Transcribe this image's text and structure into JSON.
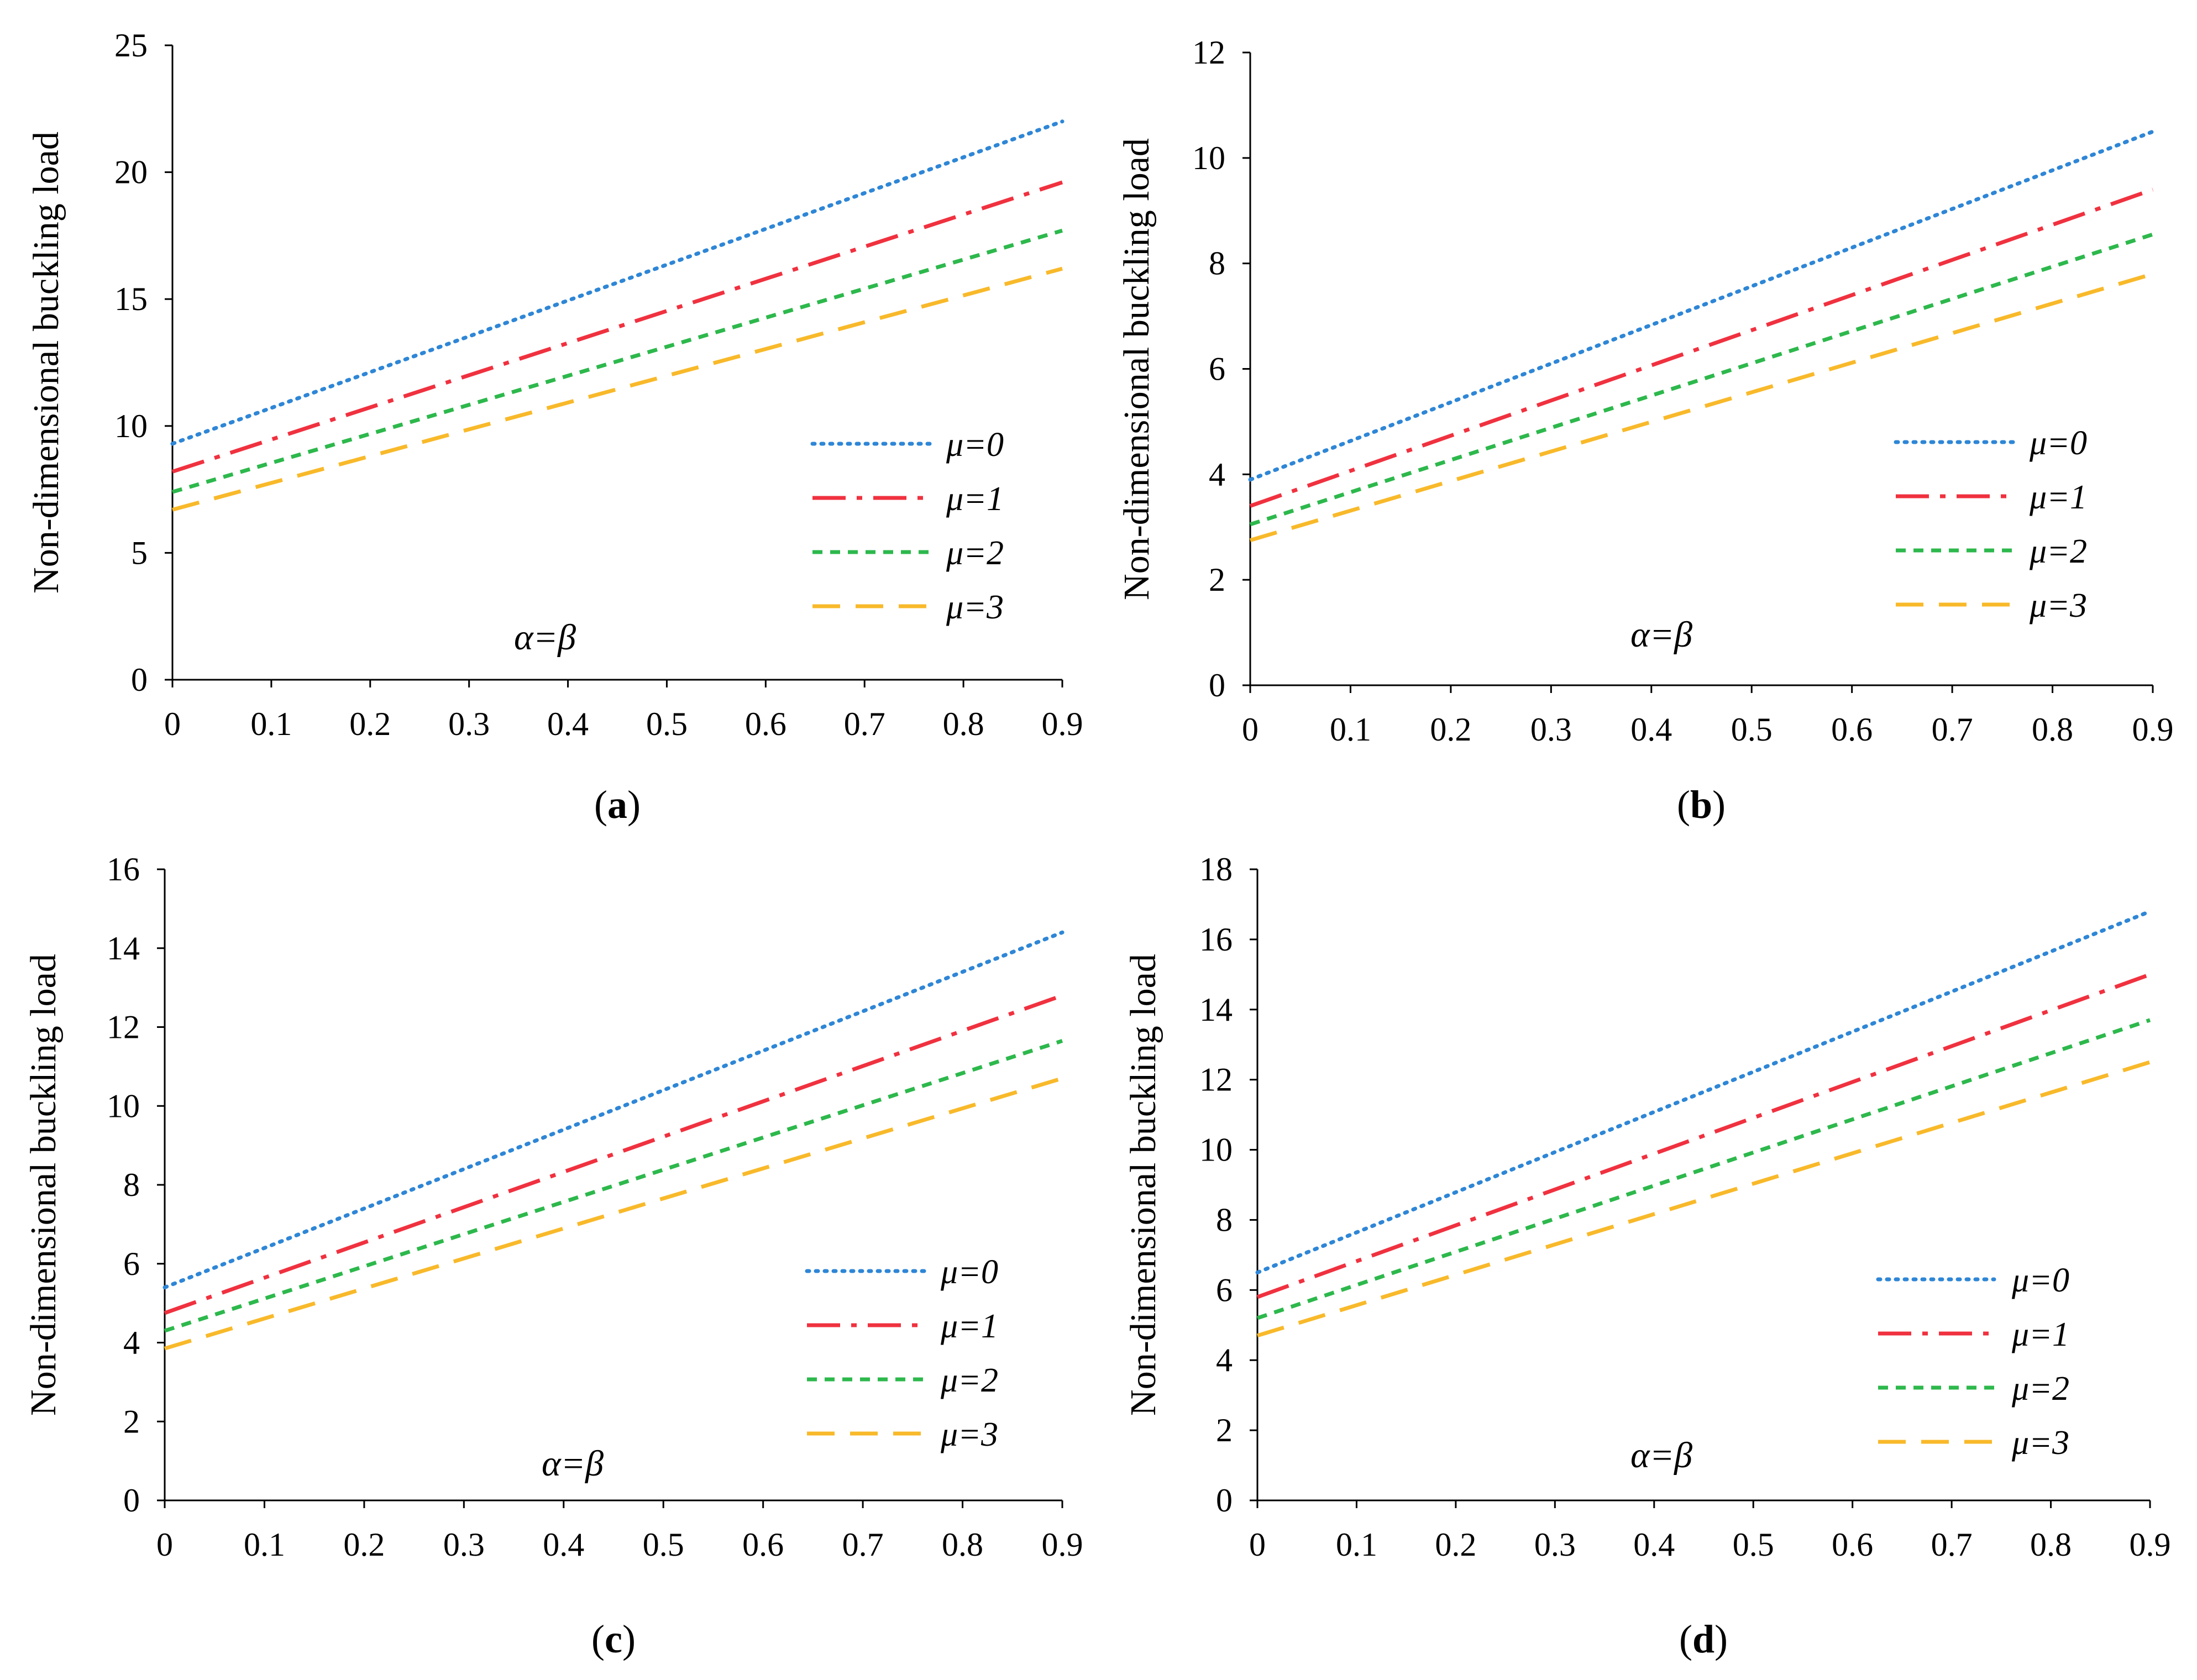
{
  "series_styles": [
    {
      "name": "μ=0",
      "color": "#2E86D6",
      "dash": "4 12",
      "cap": "round"
    },
    {
      "name": "μ=1",
      "color": "#F0313F",
      "dash": "60 20 10 20",
      "cap": "butt"
    },
    {
      "name": "μ=2",
      "color": "#2DB84C",
      "dash": "18 14",
      "cap": "butt"
    },
    {
      "name": "μ=3",
      "color": "#F8B92A",
      "dash": "50 28",
      "cap": "butt"
    }
  ],
  "chart_data": [
    {
      "type": "line",
      "caption_letter": "a",
      "annotation": "α=β",
      "ylabel": "Non-dimensional buckling load",
      "xlabel": "",
      "x": [
        0,
        0.9
      ],
      "xticks": [
        "0",
        "0.1",
        "0.2",
        "0.3",
        "0.4",
        "0.5",
        "0.6",
        "0.7",
        "0.8",
        "0.9"
      ],
      "yticks": [
        "0",
        "5",
        "10",
        "15",
        "20",
        "25"
      ],
      "xlim": [
        0,
        0.9
      ],
      "ylim": [
        0,
        25
      ],
      "series": [
        {
          "name": "μ=0",
          "values": [
            9.3,
            22.0
          ]
        },
        {
          "name": "μ=1",
          "values": [
            8.2,
            19.6
          ]
        },
        {
          "name": "μ=2",
          "values": [
            7.4,
            17.7
          ]
        },
        {
          "name": "μ=3",
          "values": [
            6.7,
            16.2
          ]
        }
      ]
    },
    {
      "type": "line",
      "caption_letter": "b",
      "annotation": "α=β",
      "ylabel": "Non-dimensional buckling load",
      "xlabel": "",
      "x": [
        0,
        0.9
      ],
      "xticks": [
        "0",
        "0.1",
        "0.2",
        "0.3",
        "0.4",
        "0.5",
        "0.6",
        "0.7",
        "0.8",
        "0.9"
      ],
      "yticks": [
        "0",
        "2",
        "4",
        "6",
        "8",
        "10",
        "12"
      ],
      "xlim": [
        0,
        0.9
      ],
      "ylim": [
        0,
        12
      ],
      "series": [
        {
          "name": "μ=0",
          "values": [
            3.9,
            10.5
          ]
        },
        {
          "name": "μ=1",
          "values": [
            3.4,
            9.4
          ]
        },
        {
          "name": "μ=2",
          "values": [
            3.05,
            8.55
          ]
        },
        {
          "name": "μ=3",
          "values": [
            2.75,
            7.8
          ]
        }
      ]
    },
    {
      "type": "line",
      "caption_letter": "c",
      "annotation": "α=β",
      "ylabel": "Non-dimensional buckling load",
      "xlabel": "",
      "x": [
        0,
        0.9
      ],
      "xticks": [
        "0",
        "0.1",
        "0.2",
        "0.3",
        "0.4",
        "0.5",
        "0.6",
        "0.7",
        "0.8",
        "0.9"
      ],
      "yticks": [
        "0",
        "2",
        "4",
        "6",
        "8",
        "10",
        "12",
        "14",
        "16"
      ],
      "xlim": [
        0,
        0.9
      ],
      "ylim": [
        0,
        16
      ],
      "series": [
        {
          "name": "μ=0",
          "values": [
            5.4,
            14.4
          ]
        },
        {
          "name": "μ=1",
          "values": [
            4.75,
            12.8
          ]
        },
        {
          "name": "μ=2",
          "values": [
            4.3,
            11.65
          ]
        },
        {
          "name": "μ=3",
          "values": [
            3.85,
            10.7
          ]
        }
      ]
    },
    {
      "type": "line",
      "caption_letter": "d",
      "annotation": "α=β",
      "ylabel": "Non-dimensional buckling load",
      "xlabel": "",
      "x": [
        0,
        0.9
      ],
      "xticks": [
        "0",
        "0.1",
        "0.2",
        "0.3",
        "0.4",
        "0.5",
        "0.6",
        "0.7",
        "0.8",
        "0.9"
      ],
      "yticks": [
        "0",
        "2",
        "4",
        "6",
        "8",
        "10",
        "12",
        "14",
        "16",
        "18"
      ],
      "xlim": [
        0,
        0.9
      ],
      "ylim": [
        0,
        18
      ],
      "series": [
        {
          "name": "μ=0",
          "values": [
            6.5,
            16.8
          ]
        },
        {
          "name": "μ=1",
          "values": [
            5.8,
            15.0
          ]
        },
        {
          "name": "μ=2",
          "values": [
            5.2,
            13.7
          ]
        },
        {
          "name": "μ=3",
          "values": [
            4.7,
            12.5
          ]
        }
      ]
    }
  ]
}
